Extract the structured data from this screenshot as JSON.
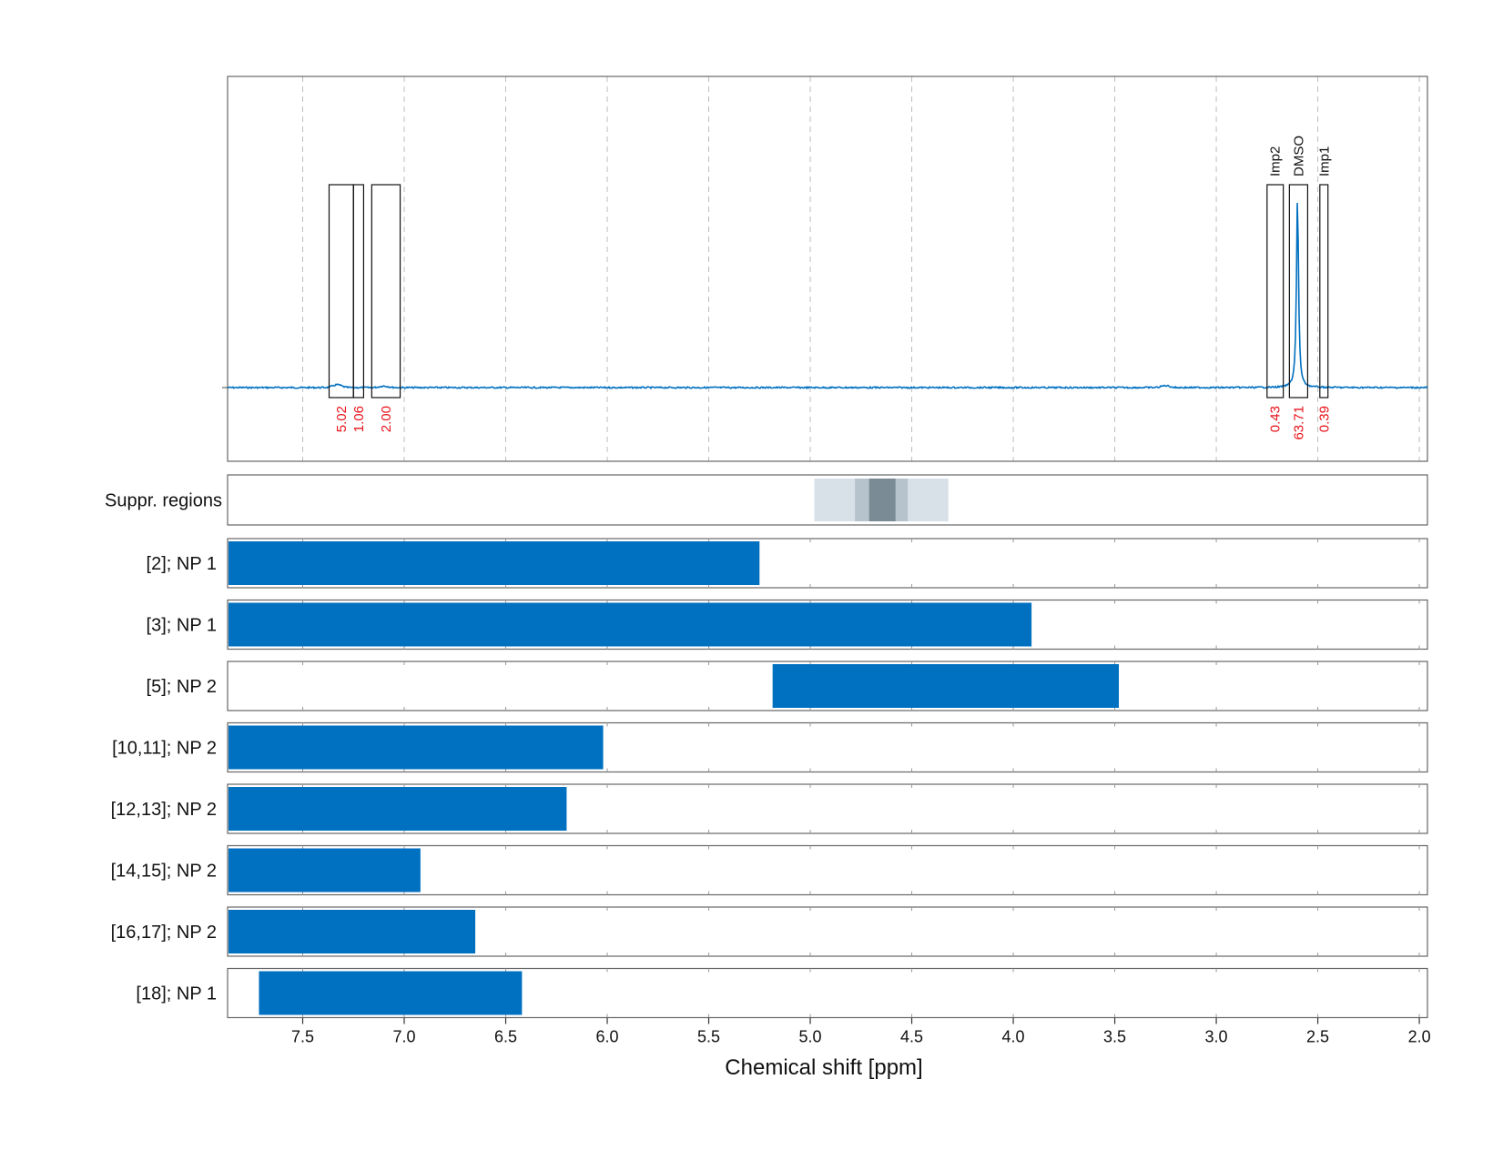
{
  "chart_data": {
    "type": "nmr-spectrum-with-range-bars",
    "xlabel": "Chemical shift [ppm]",
    "xlim": [
      7.87,
      1.96
    ],
    "x_ticks": [
      7.5,
      7.0,
      6.5,
      6.0,
      5.5,
      5.0,
      4.5,
      4.0,
      3.5,
      3.0,
      2.5,
      2.0
    ],
    "x_tick_labels": [
      "7.5",
      "7.0",
      "6.5",
      "6.0",
      "5.5",
      "5.0",
      "4.5",
      "4.0",
      "3.5",
      "3.0",
      "2.5",
      "2.0"
    ],
    "grid": true,
    "spectrum": {
      "color": "#0070C0",
      "baseline": 0,
      "peak_ppm": 2.6,
      "peak_height": 1.0,
      "minor_bumps": [
        {
          "ppm": 7.33,
          "height": 0.015
        },
        {
          "ppm": 7.1,
          "height": 0.008
        },
        {
          "ppm": 3.25,
          "height": 0.01
        }
      ]
    },
    "integration_regions": [
      {
        "from": 7.37,
        "to": 7.25,
        "value": "5.02",
        "label": ""
      },
      {
        "from": 7.25,
        "to": 7.2,
        "value": "1.06",
        "label": ""
      },
      {
        "from": 7.16,
        "to": 7.02,
        "value": "2.00",
        "label": ""
      },
      {
        "from": 2.75,
        "to": 2.67,
        "value": "0.43",
        "label": "Imp2"
      },
      {
        "from": 2.64,
        "to": 2.55,
        "value": "63.71",
        "label": "DMSO"
      },
      {
        "from": 2.49,
        "to": 2.45,
        "value": "0.39",
        "label": "Imp1"
      }
    ],
    "suppression_track": {
      "label": "Suppr. regions",
      "regions": [
        {
          "from": 4.98,
          "to": 4.32,
          "color": "#D8E0E8"
        },
        {
          "from": 4.78,
          "to": 4.52,
          "color": "#B6C3CD"
        },
        {
          "from": 4.71,
          "to": 4.58,
          "color": "#7B8B96"
        }
      ]
    },
    "range_bars": [
      {
        "label": "[2]; NP 1",
        "from": 7.87,
        "to": 5.25
      },
      {
        "label": "[3]; NP 1",
        "from": 7.87,
        "to": 3.91
      },
      {
        "label": "[5]; NP 2",
        "from": 5.19,
        "to": 3.48
      },
      {
        "label": "[10,11]; NP 2",
        "from": 7.87,
        "to": 6.02
      },
      {
        "label": "[12,13]; NP 2",
        "from": 7.87,
        "to": 6.2
      },
      {
        "label": "[14,15]; NP 2",
        "from": 7.87,
        "to": 6.92
      },
      {
        "label": "[16,17]; NP 2",
        "from": 7.87,
        "to": 6.65
      },
      {
        "label": "[18]; NP 1",
        "from": 7.72,
        "to": 6.42
      }
    ],
    "bar_color": "#0070C0",
    "value_label_color": "#E8121A"
  }
}
